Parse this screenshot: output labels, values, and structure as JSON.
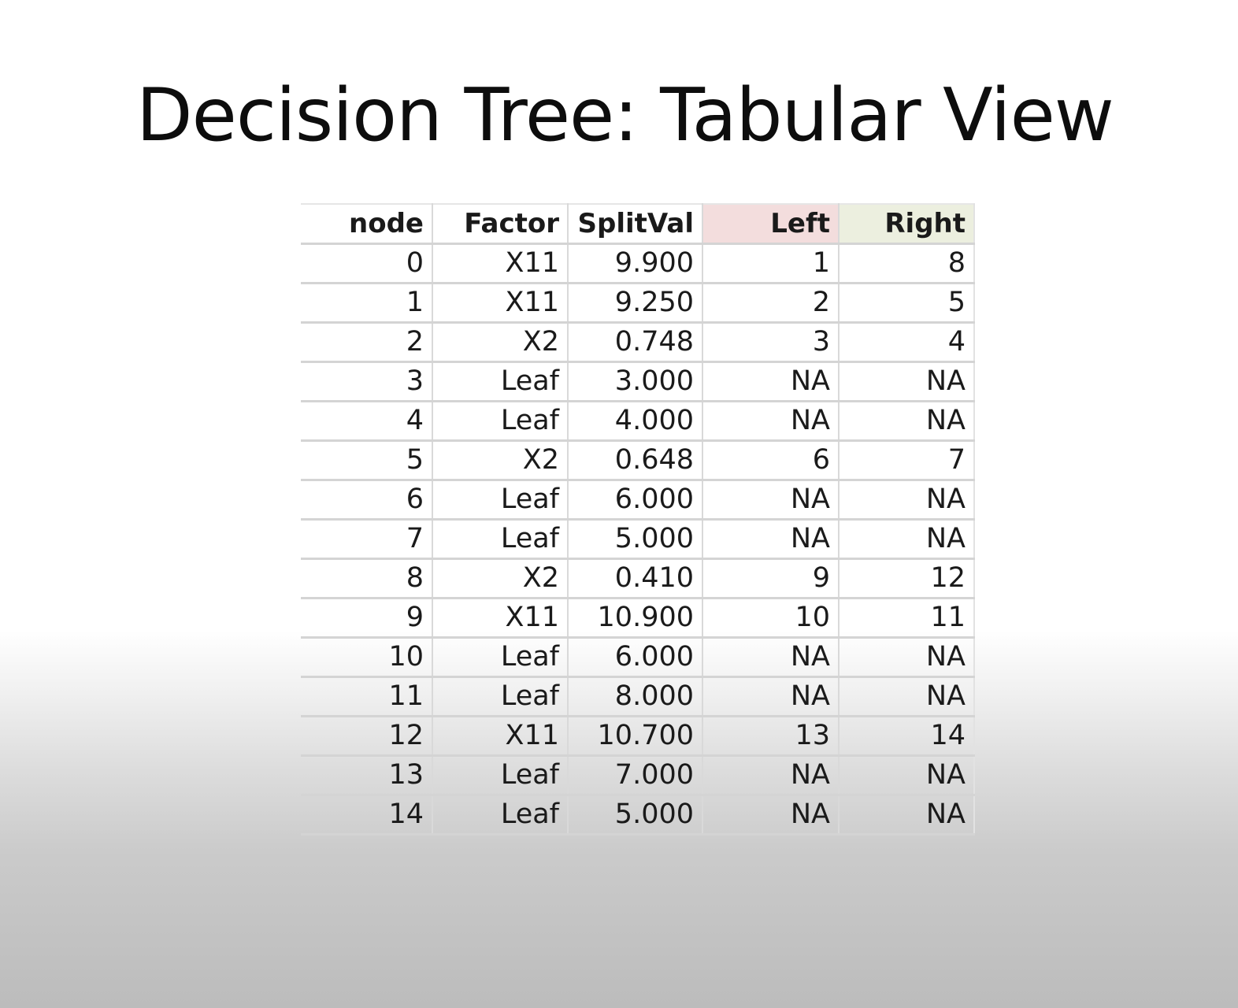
{
  "slide": {
    "title": "Decision Tree: Tabular View"
  },
  "table": {
    "columns": [
      "node",
      "Factor",
      "SplitVal",
      "Left",
      "Right"
    ],
    "header_colors": {
      "left": "#f3dddd",
      "right": "#ecefdf"
    },
    "rows": [
      [
        "0",
        "X11",
        "9.900",
        "1",
        "8"
      ],
      [
        "1",
        "X11",
        "9.250",
        "2",
        "5"
      ],
      [
        "2",
        "X2",
        "0.748",
        "3",
        "4"
      ],
      [
        "3",
        "Leaf",
        "3.000",
        "NA",
        "NA"
      ],
      [
        "4",
        "Leaf",
        "4.000",
        "NA",
        "NA"
      ],
      [
        "5",
        "X2",
        "0.648",
        "6",
        "7"
      ],
      [
        "6",
        "Leaf",
        "6.000",
        "NA",
        "NA"
      ],
      [
        "7",
        "Leaf",
        "5.000",
        "NA",
        "NA"
      ],
      [
        "8",
        "X2",
        "0.410",
        "9",
        "12"
      ],
      [
        "9",
        "X11",
        "10.900",
        "10",
        "11"
      ],
      [
        "10",
        "Leaf",
        "6.000",
        "NA",
        "NA"
      ],
      [
        "11",
        "Leaf",
        "8.000",
        "NA",
        "NA"
      ],
      [
        "12",
        "X11",
        "10.700",
        "13",
        "14"
      ],
      [
        "13",
        "Leaf",
        "7.000",
        "NA",
        "NA"
      ],
      [
        "14",
        "Leaf",
        "5.000",
        "NA",
        "NA"
      ]
    ]
  }
}
